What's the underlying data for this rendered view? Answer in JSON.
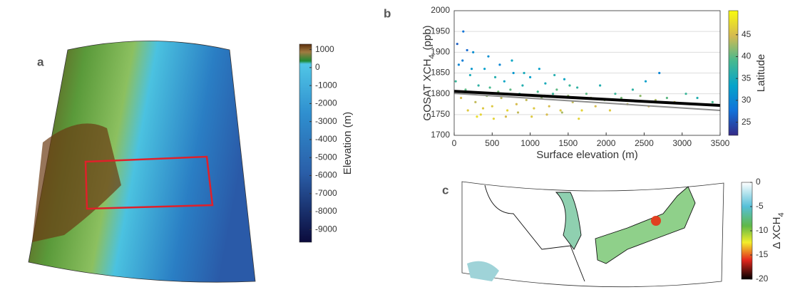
{
  "chart_data": [
    {
      "type": "map",
      "panel_label": "a",
      "colorbar": {
        "label": "Elevation (m)",
        "clim": [
          -9700,
          1300
        ],
        "ticks": [
          1000,
          0,
          -1000,
          -2000,
          -3000,
          -4000,
          -5000,
          -6000,
          -7000,
          -8000,
          -9000
        ]
      }
    },
    {
      "type": "scatter",
      "panel_label": "b",
      "x_label": "Surface elevation (m)",
      "y_label": "GOSAT XCH",
      "y_label_sub": "4",
      "y_label_unit": "(ppb)",
      "xlim": [
        0,
        3500
      ],
      "xticks": [
        0,
        500,
        1000,
        1500,
        2000,
        2500,
        3000,
        3500
      ],
      "ylim": [
        1700,
        2000
      ],
      "yticks": [
        1700,
        1750,
        1800,
        1850,
        1900,
        1950,
        2000
      ],
      "grid": true,
      "points": {
        "x": [
          20,
          60,
          90,
          120,
          150,
          180,
          210,
          250,
          280,
          320,
          350,
          400,
          430,
          470,
          500,
          540,
          580,
          620,
          660,
          700,
          740,
          780,
          820,
          860,
          900,
          950,
          1000,
          1050,
          1100,
          1150,
          1200,
          1250,
          1300,
          1350,
          1400,
          1450,
          1500,
          1560,
          1620,
          1680,
          1740,
          1800,
          1860,
          1920,
          1980,
          2050,
          2120,
          2200,
          2280,
          2350,
          2450,
          2520,
          2560,
          2650,
          2700,
          2800,
          2900,
          3050,
          3200,
          3400,
          40,
          110,
          170,
          230,
          300,
          380,
          450,
          520,
          600,
          680,
          760,
          840,
          920,
          1020,
          1120,
          1220,
          1320,
          1420,
          1520,
          1640
        ],
        "y": [
          1830,
          1870,
          1790,
          1950,
          1810,
          1760,
          1845,
          1900,
          1780,
          1820,
          1750,
          1860,
          1795,
          1815,
          1770,
          1840,
          1805,
          1790,
          1830,
          1760,
          1810,
          1850,
          1775,
          1800,
          1820,
          1785,
          1840,
          1765,
          1805,
          1790,
          1825,
          1770,
          1800,
          1810,
          1760,
          1835,
          1795,
          1780,
          1815,
          1760,
          1800,
          1790,
          1770,
          1820,
          1785,
          1760,
          1800,
          1790,
          1775,
          1810,
          1795,
          1830,
          1770,
          1785,
          1850,
          1790,
          1780,
          1800,
          1790,
          1780,
          1920,
          1880,
          1905,
          1860,
          1745,
          1765,
          1890,
          1740,
          1870,
          1745,
          1880,
          1755,
          1850,
          1745,
          1860,
          1750,
          1845,
          1755,
          1820,
          1740
        ],
        "latitude": [
          38,
          30,
          45,
          28,
          40,
          46,
          35,
          31,
          44,
          37,
          47,
          33,
          42,
          39,
          46,
          36,
          41,
          44,
          34,
          47,
          40,
          32,
          45,
          38,
          36,
          44,
          33,
          46,
          39,
          42,
          35,
          45,
          38,
          40,
          46,
          34,
          42,
          44,
          37,
          47,
          40,
          43,
          45,
          36,
          42,
          46,
          38,
          41,
          44,
          37,
          42,
          33,
          45,
          43,
          30,
          40,
          44,
          38,
          36,
          39,
          26,
          29,
          27,
          32,
          48,
          46,
          31,
          47,
          30,
          45,
          34,
          44,
          35,
          46,
          33,
          45,
          36,
          43,
          38,
          47
        ]
      },
      "fits": [
        {
          "color": "#000000",
          "x": [
            0,
            3500
          ],
          "values": [
            1806,
            1772
          ]
        },
        {
          "color": "#8c8c8c",
          "x": [
            0,
            3500
          ],
          "values": [
            1801,
            1760
          ]
        }
      ],
      "colorbar": {
        "label": "Latitude",
        "clim": [
          22,
          50.5
        ],
        "ticks": [
          25,
          30,
          35,
          40,
          45
        ]
      }
    },
    {
      "type": "map",
      "panel_label": "c",
      "colorbar": {
        "label": "Δ XCH",
        "label_sub": "4",
        "clim": [
          -20,
          0
        ],
        "ticks": [
          0,
          -5,
          -10,
          -15,
          -20
        ]
      }
    }
  ]
}
